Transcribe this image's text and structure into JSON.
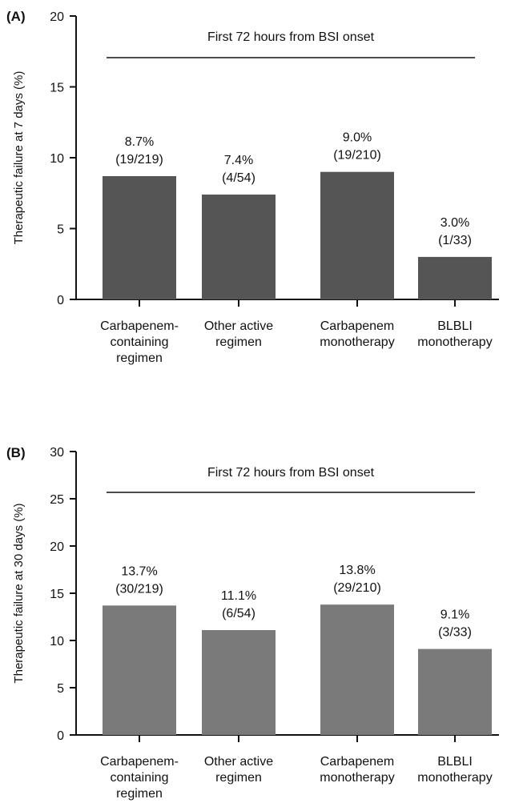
{
  "chart_data": [
    {
      "type": "bar",
      "panel_label": "(A)",
      "title": "",
      "xlabel": "",
      "ylabel": "Therapeutic failure at 7 days (%)",
      "ylim": [
        0,
        20
      ],
      "yticks": [
        0,
        5,
        10,
        15,
        20
      ],
      "bar_color": "#555555",
      "annotation": "First 72 hours from BSI onset",
      "categories": [
        [
          "Carbapenem-",
          "containing",
          "regimen"
        ],
        [
          "Other active",
          "regimen"
        ],
        [
          "Carbapenem",
          "monotherapy"
        ],
        [
          "BLBLI",
          "monotherapy"
        ]
      ],
      "values": [
        8.7,
        7.4,
        9.0,
        3.0
      ],
      "data_labels": [
        [
          "8.7%",
          "(19/219)"
        ],
        [
          "7.4%",
          "(4/54)"
        ],
        [
          "9.0%",
          "(19/210)"
        ],
        [
          "3.0%",
          "(1/33)"
        ]
      ],
      "grid": false,
      "legend": "none"
    },
    {
      "type": "bar",
      "panel_label": "(B)",
      "title": "",
      "xlabel": "",
      "ylabel": "Therapeutic failure at 30 days (%)",
      "ylim": [
        0,
        30
      ],
      "yticks": [
        0,
        5,
        10,
        15,
        20,
        25,
        30
      ],
      "bar_color": "#7a7a7a",
      "annotation": "First 72 hours from BSI onset",
      "categories": [
        [
          "Carbapenem-",
          "containing",
          "regimen"
        ],
        [
          "Other active",
          "regimen"
        ],
        [
          "Carbapenem",
          "monotherapy"
        ],
        [
          "BLBLI",
          "monotherapy"
        ]
      ],
      "values": [
        13.7,
        11.1,
        13.8,
        9.1
      ],
      "data_labels": [
        [
          "13.7%",
          "(30/219)"
        ],
        [
          "11.1%",
          "(6/54)"
        ],
        [
          "13.8%",
          "(29/210)"
        ],
        [
          "9.1%",
          "(3/33)"
        ]
      ],
      "grid": false,
      "legend": "none"
    }
  ]
}
